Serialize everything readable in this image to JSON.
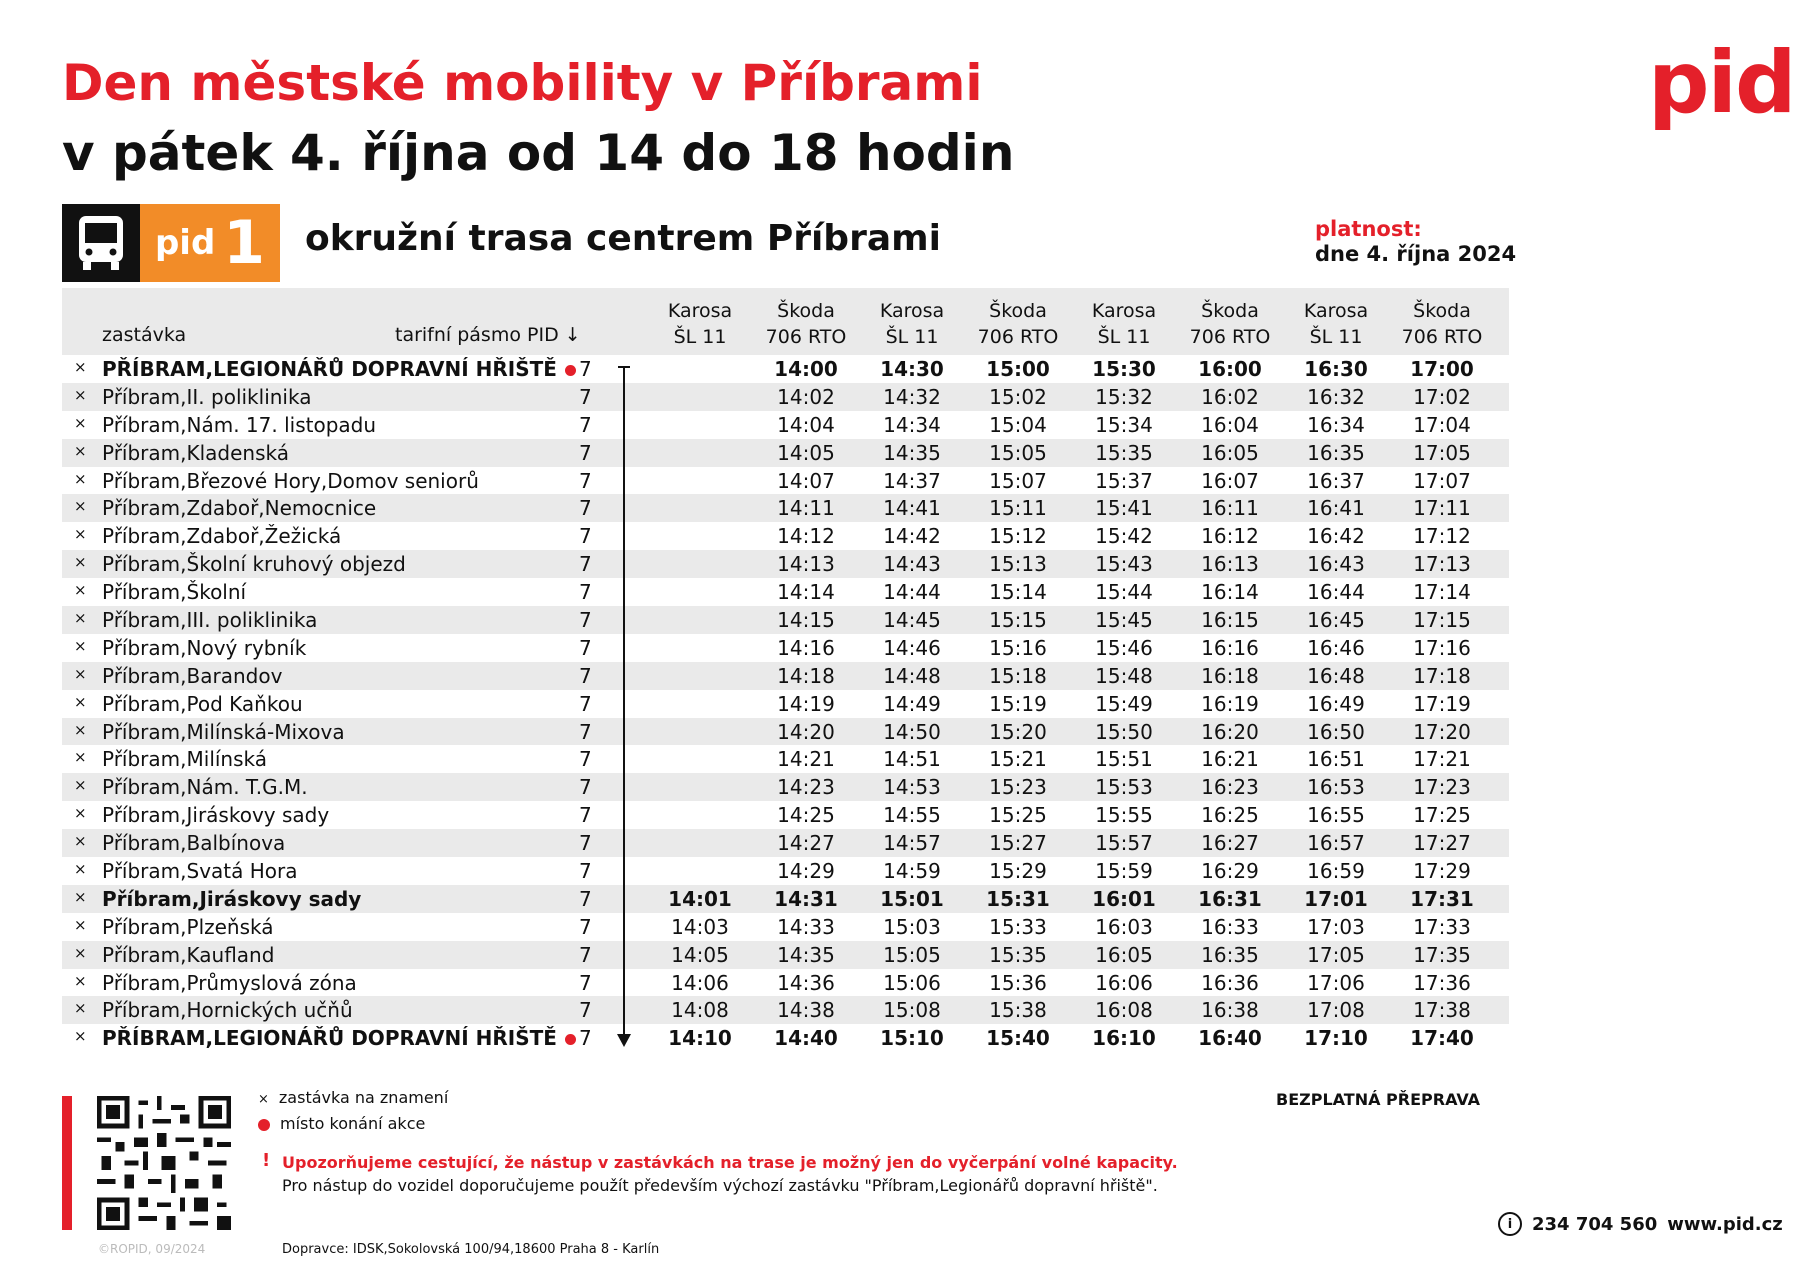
{
  "header": {
    "title_line1": "Den městské mobility v Příbrami",
    "title_line2": "v pátek 4. října od 14 do 18 hodin",
    "logo": "pid"
  },
  "badge": {
    "pid": "pid",
    "line": "1",
    "route": "okružní trasa centrem Příbrami"
  },
  "validity": {
    "label": "platnost:",
    "value": "dne 4. října 2024"
  },
  "colors": {
    "accent_red": "#e4202a",
    "line_orange": "#f28c28"
  },
  "table": {
    "col_stop": "zastávka",
    "col_zone": "tarifní pásmo PID ↓",
    "vehicles": [
      [
        "Karosa",
        "ŠL 11"
      ],
      [
        "Škoda",
        "706 RTO"
      ],
      [
        "Karosa",
        "ŠL 11"
      ],
      [
        "Škoda",
        "706 RTO"
      ],
      [
        "Karosa",
        "ŠL 11"
      ],
      [
        "Škoda",
        "706 RTO"
      ],
      [
        "Karosa",
        "ŠL 11"
      ],
      [
        "Škoda",
        "706 RTO"
      ]
    ],
    "rows": [
      {
        "name": "PŘÍBRAM,LEGIONÁŘŮ DOPRAVNÍ HŘIŠTĚ",
        "zone": "7",
        "bold": true,
        "dot": true,
        "times": [
          "",
          "14:00",
          "14:30",
          "15:00",
          "15:30",
          "16:00",
          "16:30",
          "17:00"
        ]
      },
      {
        "name": "Příbram,II. poliklinika",
        "zone": "7",
        "times": [
          "",
          "14:02",
          "14:32",
          "15:02",
          "15:32",
          "16:02",
          "16:32",
          "17:02"
        ]
      },
      {
        "name": "Příbram,Nám. 17. listopadu",
        "zone": "7",
        "times": [
          "",
          "14:04",
          "14:34",
          "15:04",
          "15:34",
          "16:04",
          "16:34",
          "17:04"
        ]
      },
      {
        "name": "Příbram,Kladenská",
        "zone": "7",
        "times": [
          "",
          "14:05",
          "14:35",
          "15:05",
          "15:35",
          "16:05",
          "16:35",
          "17:05"
        ]
      },
      {
        "name": "Příbram,Březové Hory,Domov seniorů",
        "zone": "7",
        "times": [
          "",
          "14:07",
          "14:37",
          "15:07",
          "15:37",
          "16:07",
          "16:37",
          "17:07"
        ]
      },
      {
        "name": "Příbram,Zdaboř,Nemocnice",
        "zone": "7",
        "times": [
          "",
          "14:11",
          "14:41",
          "15:11",
          "15:41",
          "16:11",
          "16:41",
          "17:11"
        ]
      },
      {
        "name": "Příbram,Zdaboř,Žežická",
        "zone": "7",
        "times": [
          "",
          "14:12",
          "14:42",
          "15:12",
          "15:42",
          "16:12",
          "16:42",
          "17:12"
        ]
      },
      {
        "name": "Příbram,Školní kruhový objezd",
        "zone": "7",
        "times": [
          "",
          "14:13",
          "14:43",
          "15:13",
          "15:43",
          "16:13",
          "16:43",
          "17:13"
        ]
      },
      {
        "name": "Příbram,Školní",
        "zone": "7",
        "times": [
          "",
          "14:14",
          "14:44",
          "15:14",
          "15:44",
          "16:14",
          "16:44",
          "17:14"
        ]
      },
      {
        "name": "Příbram,III. poliklinika",
        "zone": "7",
        "times": [
          "",
          "14:15",
          "14:45",
          "15:15",
          "15:45",
          "16:15",
          "16:45",
          "17:15"
        ]
      },
      {
        "name": "Příbram,Nový rybník",
        "zone": "7",
        "times": [
          "",
          "14:16",
          "14:46",
          "15:16",
          "15:46",
          "16:16",
          "16:46",
          "17:16"
        ]
      },
      {
        "name": "Příbram,Barandov",
        "zone": "7",
        "times": [
          "",
          "14:18",
          "14:48",
          "15:18",
          "15:48",
          "16:18",
          "16:48",
          "17:18"
        ]
      },
      {
        "name": "Příbram,Pod Kaňkou",
        "zone": "7",
        "times": [
          "",
          "14:19",
          "14:49",
          "15:19",
          "15:49",
          "16:19",
          "16:49",
          "17:19"
        ]
      },
      {
        "name": "Příbram,Milínská-Mixova",
        "zone": "7",
        "times": [
          "",
          "14:20",
          "14:50",
          "15:20",
          "15:50",
          "16:20",
          "16:50",
          "17:20"
        ]
      },
      {
        "name": "Příbram,Milínská",
        "zone": "7",
        "times": [
          "",
          "14:21",
          "14:51",
          "15:21",
          "15:51",
          "16:21",
          "16:51",
          "17:21"
        ]
      },
      {
        "name": "Příbram,Nám. T.G.M.",
        "zone": "7",
        "times": [
          "",
          "14:23",
          "14:53",
          "15:23",
          "15:53",
          "16:23",
          "16:53",
          "17:23"
        ]
      },
      {
        "name": "Příbram,Jiráskovy sady",
        "zone": "7",
        "times": [
          "",
          "14:25",
          "14:55",
          "15:25",
          "15:55",
          "16:25",
          "16:55",
          "17:25"
        ]
      },
      {
        "name": "Příbram,Balbínova",
        "zone": "7",
        "times": [
          "",
          "14:27",
          "14:57",
          "15:27",
          "15:57",
          "16:27",
          "16:57",
          "17:27"
        ]
      },
      {
        "name": "Příbram,Svatá Hora",
        "zone": "7",
        "times": [
          "",
          "14:29",
          "14:59",
          "15:29",
          "15:59",
          "16:29",
          "16:59",
          "17:29"
        ]
      },
      {
        "name": "Příbram,Jiráskovy sady",
        "zone": "7",
        "bold": true,
        "times": [
          "14:01",
          "14:31",
          "15:01",
          "15:31",
          "16:01",
          "16:31",
          "17:01",
          "17:31"
        ]
      },
      {
        "name": "Příbram,Plzeňská",
        "zone": "7",
        "times": [
          "14:03",
          "14:33",
          "15:03",
          "15:33",
          "16:03",
          "16:33",
          "17:03",
          "17:33"
        ]
      },
      {
        "name": "Příbram,Kaufland",
        "zone": "7",
        "times": [
          "14:05",
          "14:35",
          "15:05",
          "15:35",
          "16:05",
          "16:35",
          "17:05",
          "17:35"
        ]
      },
      {
        "name": "Příbram,Průmyslová zóna",
        "zone": "7",
        "times": [
          "14:06",
          "14:36",
          "15:06",
          "15:36",
          "16:06",
          "16:36",
          "17:06",
          "17:36"
        ]
      },
      {
        "name": "Příbram,Hornických učňů",
        "zone": "7",
        "times": [
          "14:08",
          "14:38",
          "15:08",
          "15:38",
          "16:08",
          "16:38",
          "17:08",
          "17:38"
        ]
      },
      {
        "name": "PŘÍBRAM,LEGIONÁŘŮ DOPRAVNÍ HŘIŠTĚ",
        "zone": "7",
        "bold": true,
        "dot": true,
        "times": [
          "14:10",
          "14:40",
          "15:10",
          "15:40",
          "16:10",
          "16:40",
          "17:10",
          "17:40"
        ]
      }
    ]
  },
  "footer": {
    "legend_request": "zastávka na znamení",
    "legend_event": "místo konání akce",
    "warning_mark": "!",
    "warning_bold": "Upozorňujeme cestující, že nástup v zastávkách na trase je možný jen do vyčerpání volné kapacity.",
    "warning_text": "Pro nástup do vozidel doporučujeme použít především výchozí zastávku \"Příbram,Legionářů dopravní hřiště\".",
    "free": "BEZPLATNÁ PŘEPRAVA",
    "phone": "234 704 560",
    "web": "www.pid.cz",
    "copyright": "©ROPID, 09/2024",
    "operator": "Dopravce: IDSK,Sokolovská 100/94,18600 Praha 8 - Karlín"
  },
  "icons": [
    "bus-icon",
    "qr-code",
    "info-icon",
    "request-stop-icon",
    "event-dot-icon"
  ]
}
